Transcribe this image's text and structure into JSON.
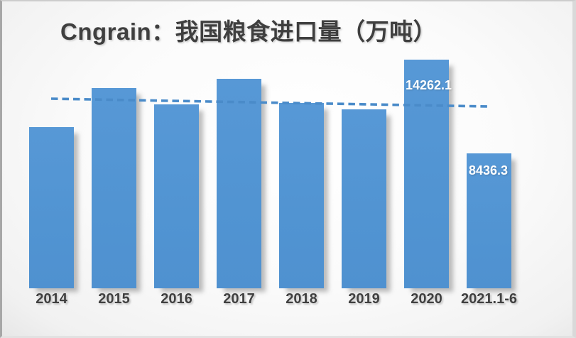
{
  "title": {
    "text": "Cngrain：我国粮食进口量（万吨）"
  },
  "chart_data": {
    "type": "bar",
    "title": "Cngrain：我国粮食进口量（万吨）",
    "categories": [
      "2014",
      "2015",
      "2016",
      "2017",
      "2018",
      "2019",
      "2020",
      "2021.1-6"
    ],
    "values": [
      10042,
      12477,
      11468,
      13062,
      11555,
      11144,
      14262.1,
      8436.3
    ],
    "data_labels": {
      "y2020": "14262.1",
      "y2021_1_6": "8436.3"
    },
    "xlabel": "",
    "ylabel": "",
    "ylim": [
      0,
      14600
    ],
    "grid": false,
    "legend": "none",
    "bar_color": "#5296d4",
    "data_label_color": "#ffffff",
    "axis_label_color": "#404040",
    "title_color": "#3f3f3f",
    "trendline": {
      "type": "linear",
      "style": "dashed",
      "color": "#4a8bc9",
      "start_value": 11820,
      "end_value": 11340
    }
  }
}
